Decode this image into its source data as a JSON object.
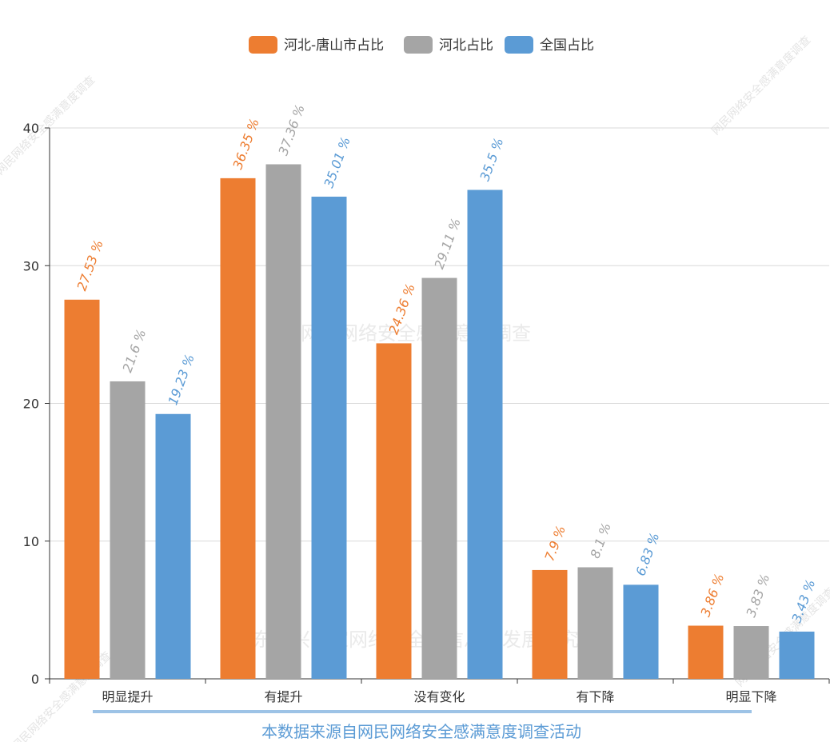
{
  "chart_data": {
    "type": "bar",
    "categories": [
      "明显提升",
      "有提升",
      "没有变化",
      "有下降",
      "明显下降"
    ],
    "series": [
      {
        "name": "河北-唐山市占比",
        "color": "#ed7d31",
        "values": [
          27.53,
          36.35,
          24.36,
          7.9,
          3.86
        ],
        "labels": [
          "27.53 %",
          "36.35 %",
          "24.36 %",
          "7.9 %",
          "3.86 %"
        ]
      },
      {
        "name": "河北占比",
        "color": "#a5a5a5",
        "values": [
          21.6,
          37.36,
          29.11,
          8.1,
          3.83
        ],
        "labels": [
          "21.6 %",
          "37.36 %",
          "29.11 %",
          "8.1 %",
          "3.83 %"
        ]
      },
      {
        "name": "全国占比",
        "color": "#5b9bd5",
        "values": [
          19.23,
          35.01,
          35.5,
          6.83,
          3.43
        ],
        "labels": [
          "19.23 %",
          "35.01 %",
          "35.5 %",
          "6.83 %",
          "3.43 %"
        ]
      }
    ],
    "yticks": [
      "0",
      "10",
      "20",
      "30",
      "40"
    ],
    "ylim": [
      0,
      40
    ],
    "grid": true,
    "legend_position": "top-center"
  },
  "footer": {
    "text": "本数据来源自网民网络安全感满意度调查活动",
    "line_color": "#9dc3e6"
  },
  "watermarks": {
    "center": "网民网络安全感满意度调查",
    "bottom": "广东新兴国家网络安全和信息化发展研究院",
    "corner": "网民网络安全感满意度调查"
  }
}
